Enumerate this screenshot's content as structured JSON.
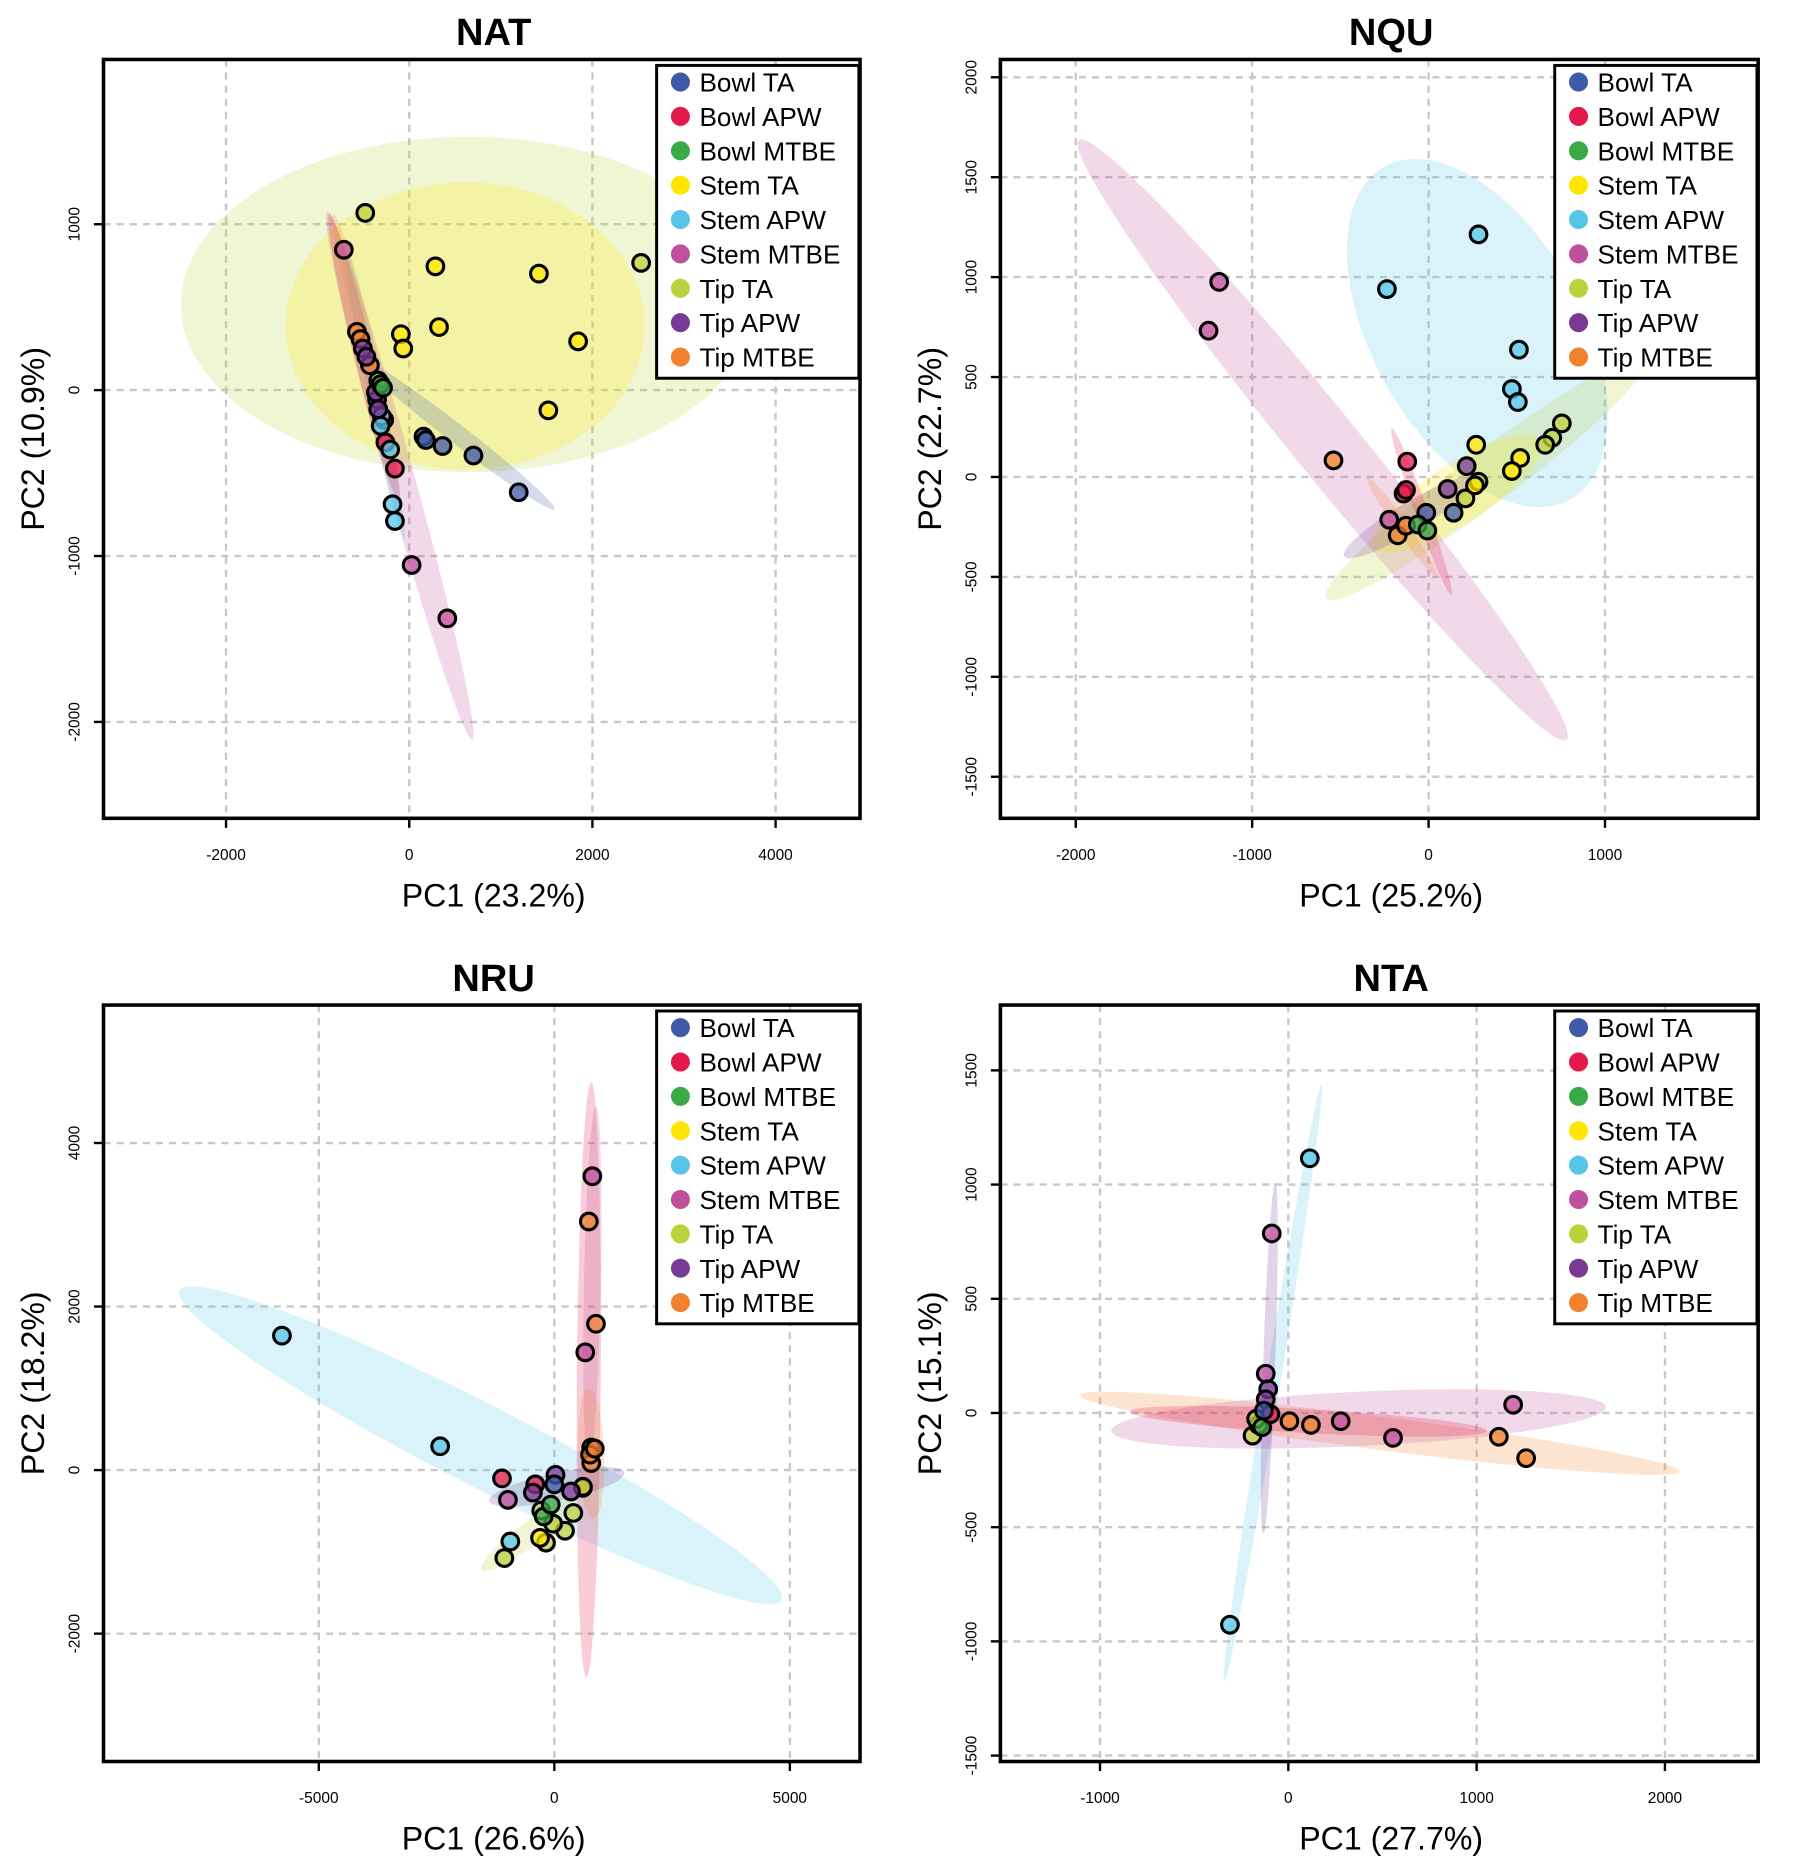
{
  "legend": [
    {
      "label": "Bowl TA",
      "color": "#3f5aa8"
    },
    {
      "label": "Bowl APW",
      "color": "#e4184a"
    },
    {
      "label": "Bowl MTBE",
      "color": "#3aaa48"
    },
    {
      "label": "Stem TA",
      "color": "#ffe600"
    },
    {
      "label": "Stem APW",
      "color": "#56c5e8"
    },
    {
      "label": "Stem MTBE",
      "color": "#c0509c"
    },
    {
      "label": "Tip TA",
      "color": "#bcd23c"
    },
    {
      "label": "Tip APW",
      "color": "#7b3996"
    },
    {
      "label": "Tip MTBE",
      "color": "#f0822e"
    }
  ],
  "chart_data": [
    {
      "type": "scatter",
      "title": "NAT",
      "xlabel": "PC1 (23.2%)",
      "ylabel": "PC2 (10.9%)",
      "xlim": [
        -3338,
        4922
      ],
      "ylim": [
        -2581,
        1993
      ],
      "xticks": [
        -2000,
        0,
        2000,
        4000
      ],
      "yticks": [
        -2000,
        -1000,
        0,
        1000
      ],
      "legend_position": "top-right",
      "ellipses": [
        {
          "group": "Tip TA",
          "center": [
            636,
            516
          ],
          "axis": [
            3130,
            0
          ],
          "ratio": 0.585
        },
        {
          "group": "Stem TA",
          "center": [
            610,
            387
          ],
          "axis": [
            1961,
            0
          ],
          "ratio": 0.8
        },
        {
          "group": "Stem MTBE",
          "center": [
            -104,
            -516
          ],
          "axis": [
            792,
            -1591
          ],
          "ratio": 0.052
        },
        {
          "group": "Bowl TA",
          "center": [
            506,
            -258
          ],
          "axis": [
            1078,
            -459
          ],
          "ratio": 0.076
        },
        {
          "group": "Stem APW",
          "center": [
            -377,
            -14
          ],
          "axis": [
            325,
            -896
          ],
          "ratio": 0.047
        },
        {
          "group": "Bowl APW",
          "center": [
            -494,
            200
          ],
          "axis": [
            377,
            -860
          ],
          "ratio": 0.065
        },
        {
          "group": "Tip MTBE",
          "center": [
            -571,
            523
          ],
          "axis": [
            260,
            -538
          ],
          "ratio": 0.077
        }
      ],
      "points": [
        {
          "group": "Stem TA",
          "xy": [
            [
              286,
              746
            ],
            [
              1416,
              702
            ],
            [
              325,
              380
            ],
            [
              -91,
              337
            ],
            [
              -65,
              251
            ],
            [
              1844,
              294
            ],
            [
              1519,
              -122
            ]
          ]
        },
        {
          "group": "Tip TA",
          "xy": [
            [
              -480,
              1068
            ],
            [
              2532,
              767
            ],
            [
              -338,
              57
            ]
          ]
        },
        {
          "group": "Stem MTBE",
          "xy": [
            [
              -714,
              846
            ],
            [
              26,
              -1054
            ],
            [
              416,
              -1376
            ]
          ]
        },
        {
          "group": "Bowl APW",
          "xy": [
            [
              -156,
              -473
            ],
            [
              -273,
              -179
            ],
            [
              -260,
              -315
            ]
          ]
        },
        {
          "group": "Bowl TA",
          "xy": [
            [
              156,
              -280
            ],
            [
              182,
              -301
            ],
            [
              364,
              -337
            ],
            [
              701,
              -394
            ],
            [
              1195,
              -616
            ]
          ]
        },
        {
          "group": "Stem APW",
          "xy": [
            [
              -182,
              -688
            ],
            [
              -156,
              -789
            ],
            [
              -299,
              -158
            ],
            [
              -208,
              -358
            ],
            [
              -312,
              -215
            ]
          ]
        },
        {
          "group": "Tip MTBE",
          "xy": [
            [
              -571,
              351
            ],
            [
              -532,
              308
            ],
            [
              -429,
              150
            ]
          ]
        },
        {
          "group": "Tip APW",
          "xy": [
            [
              -506,
              251
            ],
            [
              -468,
              201
            ],
            [
              -351,
              -57
            ],
            [
              -338,
              -115
            ],
            [
              -364,
              -14
            ]
          ]
        },
        {
          "group": "Bowl MTBE",
          "xy": [
            [
              -312,
              36
            ],
            [
              -286,
              14
            ]
          ]
        }
      ]
    },
    {
      "type": "scatter",
      "title": "NQU",
      "xlabel": "PC1 (25.2%)",
      "ylabel": "PC2 (22.7%)",
      "xlim": [
        -2427,
        1868
      ],
      "ylim": [
        -1708,
        2089
      ],
      "xticks": [
        -2000,
        -1000,
        0,
        1000
      ],
      "yticks": [
        -1500,
        -1000,
        -500,
        0,
        500,
        1000,
        1500,
        2000
      ],
      "legend_position": "top-right",
      "ellipses": [
        {
          "group": "Stem MTBE",
          "center": [
            -600,
            185
          ],
          "axis": [
            1382,
            -1500
          ],
          "ratio": 0.085
        },
        {
          "group": "Stem APW",
          "center": [
            276,
            720
          ],
          "axis": [
            526,
            -833
          ],
          "ratio": 0.55
        },
        {
          "group": "Tip TA",
          "center": [
            330,
            -6
          ],
          "axis": [
            910,
            601
          ],
          "ratio": 0.13
        },
        {
          "group": "Stem TA",
          "center": [
            162,
            -83
          ],
          "axis": [
            472,
            268
          ],
          "ratio": 0.3
        },
        {
          "group": "Tip APW",
          "center": [
            -108,
            -202
          ],
          "axis": [
            371,
            196
          ],
          "ratio": 0.19
        },
        {
          "group": "Bowl APW",
          "center": [
            -40,
            -173
          ],
          "axis": [
            169,
            -417
          ],
          "ratio": 0.07
        },
        {
          "group": "Tip MTBE",
          "center": [
            -150,
            -250
          ],
          "axis": [
            200,
            -250
          ],
          "ratio": 0.1
        }
      ],
      "points": [
        {
          "group": "Stem MTBE",
          "xy": [
            [
              -1187,
              976
            ],
            [
              -1247,
              732
            ],
            [
              -223,
              -214
            ]
          ]
        },
        {
          "group": "Stem APW",
          "xy": [
            [
              283,
              1214
            ],
            [
              -236,
              940
            ],
            [
              512,
              637
            ],
            [
              472,
              440
            ],
            [
              506,
              375
            ]
          ]
        },
        {
          "group": "Tip MTBE",
          "xy": [
            [
              -539,
              83
            ],
            [
              -175,
              -292
            ],
            [
              -128,
              -244
            ]
          ]
        },
        {
          "group": "Bowl APW",
          "xy": [
            [
              -121,
              77
            ],
            [
              -142,
              -83
            ],
            [
              -128,
              -65
            ]
          ]
        },
        {
          "group": "Tip TA",
          "xy": [
            [
              755,
              268
            ],
            [
              701,
              196
            ],
            [
              661,
              161
            ],
            [
              209,
              -107
            ],
            [
              283,
              -24
            ]
          ]
        },
        {
          "group": "Stem TA",
          "xy": [
            [
              519,
              95
            ],
            [
              472,
              30
            ],
            [
              270,
              161
            ],
            [
              263,
              -42
            ]
          ]
        },
        {
          "group": "Bowl TA",
          "xy": [
            [
              -13,
              -179
            ],
            [
              142,
              -179
            ]
          ]
        },
        {
          "group": "Bowl MTBE",
          "xy": [
            [
              -61,
              -238
            ],
            [
              -7,
              -268
            ]
          ]
        },
        {
          "group": "Tip APW",
          "xy": [
            [
              108,
              -60
            ],
            [
              216,
              54
            ]
          ]
        }
      ]
    },
    {
      "type": "scatter",
      "title": "NRU",
      "xlabel": "PC1 (26.6%)",
      "ylabel": "PC2 (18.2%)",
      "xlim": [
        -9571,
        6490
      ],
      "ylim": [
        -3564,
        5687
      ],
      "xticks": [
        -5000,
        0,
        5000
      ],
      "yticks": [
        -2000,
        0,
        2000,
        4000
      ],
      "legend_position": "top-right",
      "ellipses": [
        {
          "group": "Stem APW",
          "center": [
            -1566,
            305
          ],
          "axis": [
            6389,
            -1891
          ],
          "ratio": 0.12
        },
        {
          "group": "Bowl APW",
          "center": [
            732,
            1105
          ],
          "axis": [
            51,
            3636
          ],
          "ratio": 0.04
        },
        {
          "group": "Stem MTBE",
          "center": [
            808,
            2269
          ],
          "axis": [
            76,
            2182
          ],
          "ratio": 0.047
        },
        {
          "group": "Tip APW",
          "center": [
            50,
            -204
          ],
          "axis": [
            1439,
            175
          ],
          "ratio": 0.2
        },
        {
          "group": "Tip TA",
          "center": [
            -530,
            -785
          ],
          "axis": [
            -1010,
            -436
          ],
          "ratio": 0.2
        },
        {
          "group": "Tip MTBE",
          "center": [
            780,
            200
          ],
          "axis": [
            50,
            -800
          ],
          "ratio": 0.2
        }
      ],
      "points": [
        {
          "group": "Stem APW",
          "xy": [
            [
              -5783,
              1644
            ],
            [
              -2424,
              291
            ],
            [
              -934,
              -873
            ]
          ]
        },
        {
          "group": "Stem MTBE",
          "xy": [
            [
              808,
              3593
            ],
            [
              657,
              1440
            ],
            [
              -985,
              -364
            ],
            [
              783,
              276
            ]
          ]
        },
        {
          "group": "Tip MTBE",
          "xy": [
            [
              732,
              3040
            ],
            [
              884,
              1789
            ],
            [
              606,
              -218
            ],
            [
              783,
              87
            ],
            [
              758,
              189
            ],
            [
              859,
              262
            ]
          ]
        },
        {
          "group": "Bowl APW",
          "xy": [
            [
              -1111,
              -102
            ],
            [
              -404,
              -175
            ]
          ]
        },
        {
          "group": "Tip TA",
          "xy": [
            [
              -1061,
              -1076
            ],
            [
              -177,
              -887
            ],
            [
              227,
              -742
            ],
            [
              404,
              -524
            ],
            [
              606,
              -204
            ],
            [
              -278,
              -495
            ],
            [
              -25,
              -655
            ]
          ]
        },
        {
          "group": "Tip APW",
          "xy": [
            [
              25,
              -58
            ],
            [
              354,
              -262
            ],
            [
              -455,
              -276
            ]
          ]
        },
        {
          "group": "Bowl TA",
          "xy": [
            [
              0,
              -175
            ]
          ]
        },
        {
          "group": "Bowl MTBE",
          "xy": [
            [
              -227,
              -567
            ],
            [
              -76,
              -422
            ]
          ]
        },
        {
          "group": "Stem TA",
          "xy": [
            [
              -303,
              -829
            ]
          ]
        }
      ]
    },
    {
      "type": "scatter",
      "title": "NTA",
      "xlabel": "PC1 (27.7%)",
      "ylabel": "PC2 (15.1%)",
      "xlim": [
        -1529,
        2495
      ],
      "ylim": [
        -1526,
        1786
      ],
      "xticks": [
        -1000,
        0,
        1000,
        2000
      ],
      "yticks": [
        -1500,
        -1000,
        -500,
        0,
        500,
        1000,
        1500
      ],
      "legend_position": "top-right",
      "ellipses": [
        {
          "group": "Stem APW",
          "center": [
            -82,
            130
          ],
          "axis": [
            259,
            1307
          ],
          "ratio": 0.024
        },
        {
          "group": "Tip MTBE",
          "center": [
            486,
            -89
          ],
          "axis": [
            1592,
            -167
          ],
          "ratio": 0.055
        },
        {
          "group": "Stem MTBE",
          "center": [
            373,
            -26
          ],
          "axis": [
            1314,
            52
          ],
          "ratio": 0.11
        },
        {
          "group": "Bowl APW",
          "center": [
            107,
            -36
          ],
          "axis": [
            948,
            -42
          ],
          "ratio": 0.067
        },
        {
          "group": "Tip APW",
          "center": [
            -101,
            240
          ],
          "axis": [
            32,
            771
          ],
          "ratio": 0.034
        }
      ],
      "points": [
        {
          "group": "Stem APW",
          "xy": [
            [
              114,
              1115
            ],
            [
              -310,
              -927
            ]
          ]
        },
        {
          "group": "Stem MTBE",
          "xy": [
            [
              -88,
              786
            ],
            [
              1194,
              36
            ],
            [
              556,
              -109
            ],
            [
              278,
              -36
            ],
            [
              -120,
              172
            ]
          ]
        },
        {
          "group": "Tip MTBE",
          "xy": [
            [
              1118,
              -104
            ],
            [
              1263,
              -198
            ],
            [
              120,
              -52
            ],
            [
              6,
              -36
            ]
          ]
        },
        {
          "group": "Tip APW",
          "xy": [
            [
              -107,
              104
            ],
            [
              -120,
              60
            ]
          ]
        },
        {
          "group": "Tip TA",
          "xy": [
            [
              -190,
              -99
            ],
            [
              -158,
              -52
            ],
            [
              -171,
              -26
            ]
          ]
        },
        {
          "group": "Bowl MTBE",
          "xy": [
            [
              -139,
              -62
            ]
          ]
        },
        {
          "group": "Bowl APW",
          "xy": [
            [
              -95,
              -5
            ]
          ]
        },
        {
          "group": "Bowl TA",
          "xy": [
            [
              -130,
              10
            ]
          ]
        }
      ]
    }
  ]
}
